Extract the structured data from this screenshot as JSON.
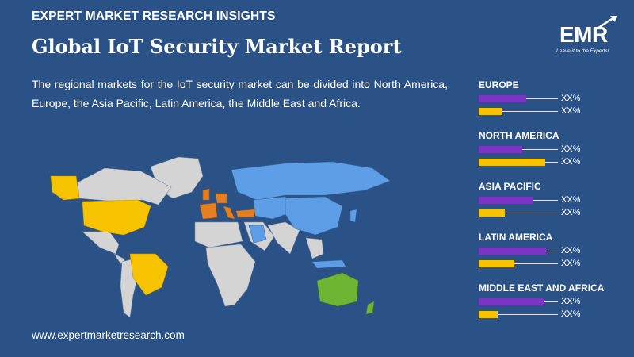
{
  "header": {
    "kicker": "EXPERT MARKET RESEARCH INSIGHTS",
    "title": "Global IoT Security Market Report",
    "description": "The regional markets for the IoT security market can be divided into North America, Europe, the Asia Pacific, Latin America, the Middle East and Africa."
  },
  "logo": {
    "text": "EMR",
    "tagline": "Leave it to the Experts!"
  },
  "footer": {
    "website": "www.expertmarketresearch.com"
  },
  "colors": {
    "background": "#2a5286",
    "purple_series": "#7a35c4",
    "yellow_series": "#f7c300",
    "map_blue": "#5d9ee6",
    "map_yellow": "#f7c300",
    "map_orange": "#e67e22",
    "map_green": "#6fb534",
    "map_grey": "#d4d4d4"
  },
  "chart_data": {
    "type": "bar",
    "orientation": "horizontal",
    "value_label_text": "XX%",
    "categories": [
      "EUROPE",
      "NORTH AMERICA",
      "ASIA PACIFIC",
      "LATIN AMERICA",
      "MIDDLE EAST AND AFRICA"
    ],
    "series": [
      {
        "values": [
          0.6,
          0.55,
          0.68,
          0.85,
          0.83
        ]
      },
      {
        "values": [
          0.3,
          0.84,
          0.33,
          0.45,
          0.24
        ]
      }
    ],
    "xlim": [
      0,
      1
    ]
  }
}
